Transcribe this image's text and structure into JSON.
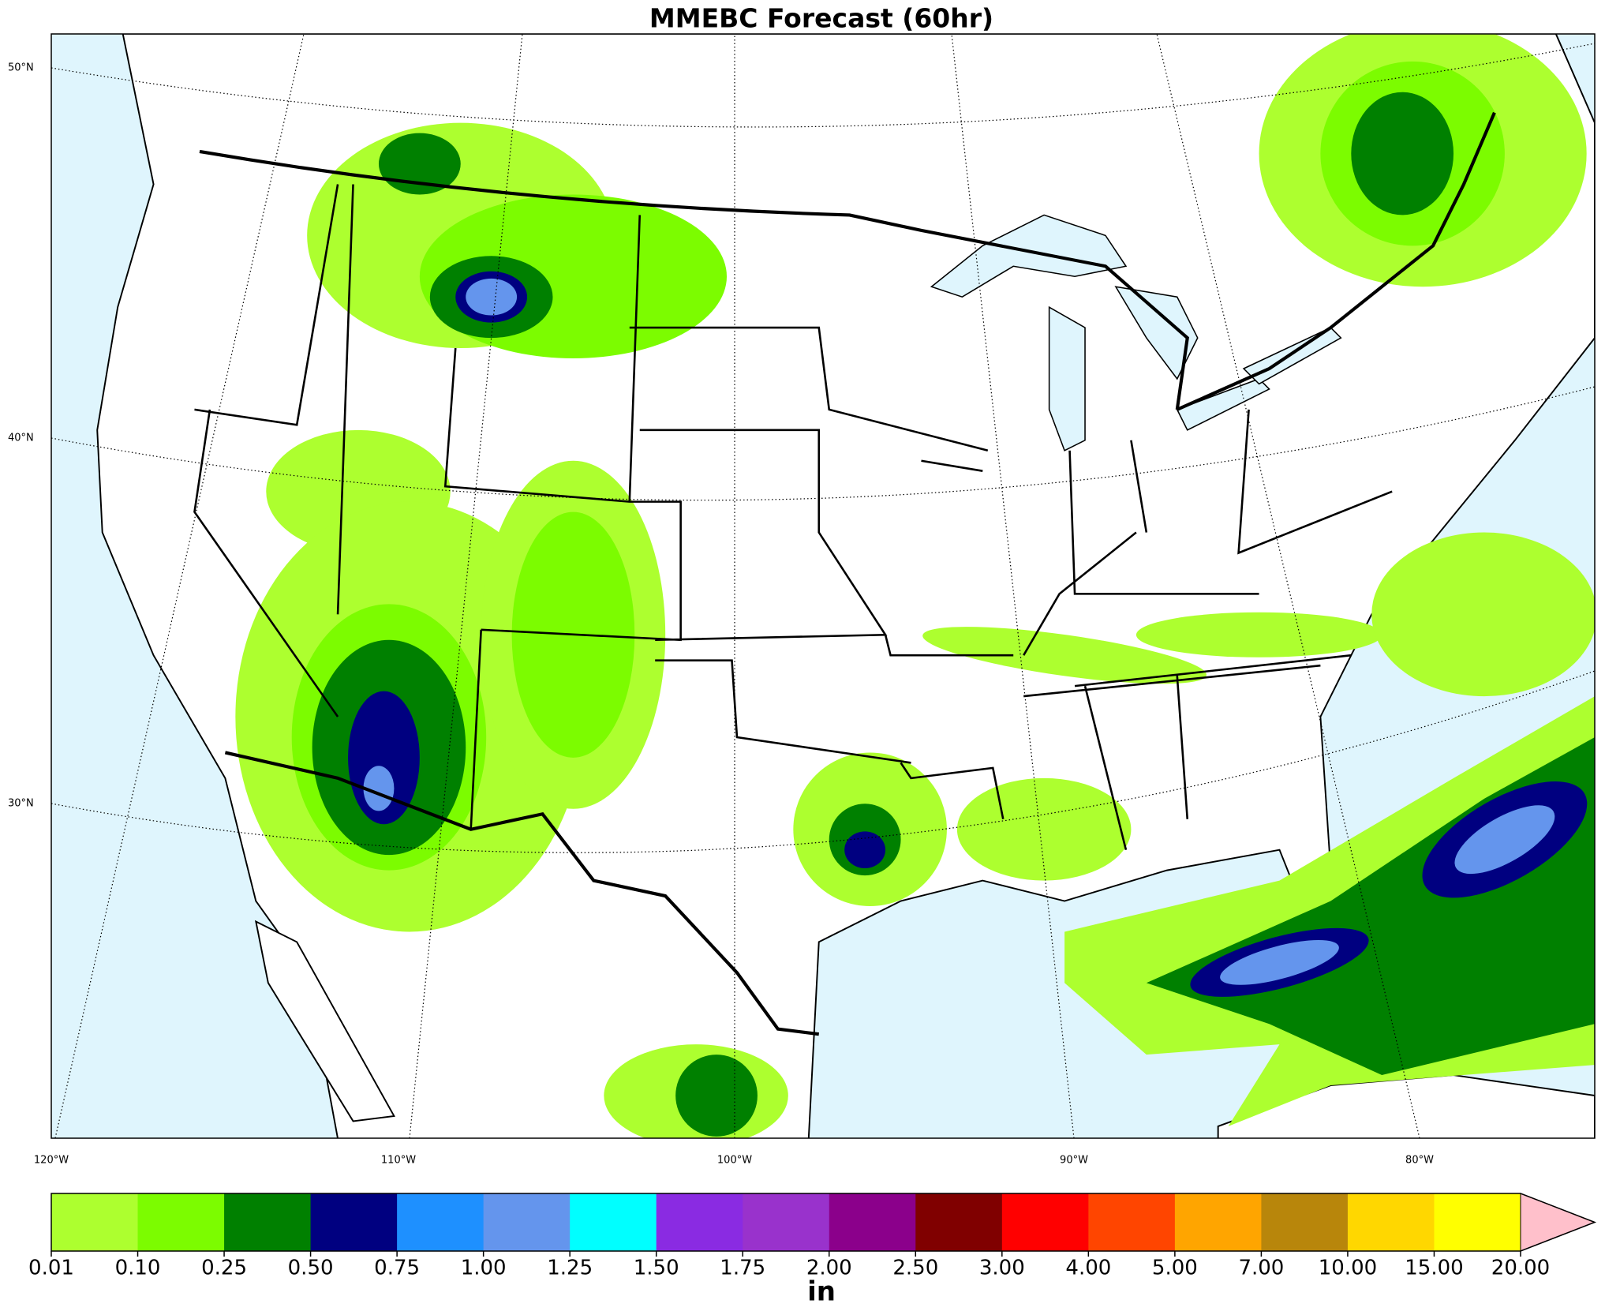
{
  "title": "MMEBC Forecast (60hr)",
  "lat_labels": [
    "50°N",
    "40°N",
    "30°N"
  ],
  "lon_labels": [
    "120°W",
    "110°W",
    "100°W",
    "90°W",
    "80°W"
  ],
  "colorbar": {
    "label": "in",
    "levels": [
      {
        "value": 0.01,
        "label": "0.01"
      },
      {
        "value": 0.1,
        "label": "0.10"
      },
      {
        "value": 0.25,
        "label": "0.25"
      },
      {
        "value": 0.5,
        "label": "0.50"
      },
      {
        "value": 0.75,
        "label": "0.75"
      },
      {
        "value": 1,
        "label": "1.00"
      },
      {
        "value": 1.25,
        "label": "1.25"
      },
      {
        "value": 1.5,
        "label": "1.50"
      },
      {
        "value": 1.75,
        "label": "1.75"
      },
      {
        "value": 2,
        "label": "2.00"
      },
      {
        "value": 2.5,
        "label": "2.50"
      },
      {
        "value": 3,
        "label": "3.00"
      },
      {
        "value": 4,
        "label": "4.00"
      },
      {
        "value": 5,
        "label": "5.00"
      },
      {
        "value": 7,
        "label": "7.00"
      },
      {
        "value": 10,
        "label": "10.00"
      },
      {
        "value": 15,
        "label": "15.00"
      },
      {
        "value": 20,
        "label": "20.00"
      }
    ],
    "colors": [
      "#adff2f",
      "#7cfc00",
      "#008000",
      "#000080",
      "#1e90ff",
      "#6495ed",
      "#00ffff",
      "#8a2be2",
      "#9932cc",
      "#8b008b",
      "#800000",
      "#ff0000",
      "#ff4500",
      "#ffa500",
      "#b8860b",
      "#ffd700",
      "#ffff00"
    ],
    "extend_color": "#ffc0cb"
  }
}
